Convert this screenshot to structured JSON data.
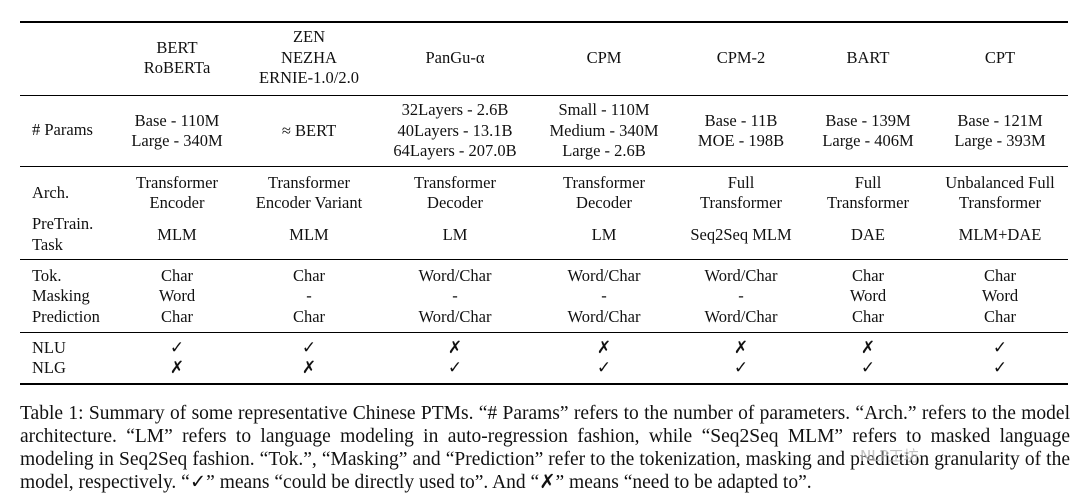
{
  "columns": [
    {
      "lines": [
        "BERT",
        "RoBERTa"
      ]
    },
    {
      "lines": [
        "ZEN",
        "NEZHA",
        "ERNIE-1.0/2.0"
      ]
    },
    {
      "lines": [
        "PanGu-α"
      ]
    },
    {
      "lines": [
        "CPM"
      ]
    },
    {
      "lines": [
        "CPM-2"
      ]
    },
    {
      "lines": [
        "BART"
      ]
    },
    {
      "lines": [
        "CPT"
      ]
    }
  ],
  "row_labels": {
    "params": "# Params",
    "arch": "Arch.",
    "pretrain": [
      "PreTrain.",
      "Task"
    ],
    "tok": "Tok.",
    "masking": "Masking",
    "prediction": "Prediction",
    "nlu": "NLU",
    "nlg": "NLG"
  },
  "params": [
    [
      "Base - 110M",
      "Large - 340M"
    ],
    [
      "≈ BERT"
    ],
    [
      "32Layers - 2.6B",
      "40Layers - 13.1B",
      "64Layers - 207.0B"
    ],
    [
      "Small - 110M",
      "Medium - 340M",
      "Large - 2.6B"
    ],
    [
      "Base - 11B",
      "MOE - 198B"
    ],
    [
      "Base - 139M",
      "Large - 406M"
    ],
    [
      "Base - 121M",
      "Large - 393M"
    ]
  ],
  "arch": [
    [
      "Transformer",
      "Encoder"
    ],
    [
      "Transformer",
      "Encoder Variant"
    ],
    [
      "Transformer",
      "Decoder"
    ],
    [
      "Transformer",
      "Decoder"
    ],
    [
      "Full",
      "Transformer"
    ],
    [
      "Full",
      "Transformer"
    ],
    [
      "Unbalanced Full",
      "Transformer"
    ]
  ],
  "pretrain": [
    "MLM",
    "MLM",
    "LM",
    "LM",
    "Seq2Seq MLM",
    "DAE",
    "MLM+DAE"
  ],
  "tok": [
    "Char",
    "Char",
    "Word/Char",
    "Word/Char",
    "Word/Char",
    "Char",
    "Char"
  ],
  "masking": [
    "Word",
    "-",
    "-",
    "-",
    "-",
    "Word",
    "Word"
  ],
  "prediction": [
    "Char",
    "Char",
    "Word/Char",
    "Word/Char",
    "Word/Char",
    "Char",
    "Char"
  ],
  "nlu": [
    "✓",
    "✓",
    "✗",
    "✗",
    "✗",
    "✗",
    "✓"
  ],
  "nlg": [
    "✗",
    "✗",
    "✓",
    "✓",
    "✓",
    "✓",
    "✓"
  ],
  "caption": "Table 1: Summary of some representative Chinese PTMs. “# Params” refers to the number of parameters. “Arch.” refers to the model architecture. “LM” refers to language modeling in auto-regression fashion, while “Seq2Seq MLM” refers to masked language modeling in Seq2Seq fashion. “Tok.”, “Masking” and “Prediction” refer to the tokenization, masking and prediction granularity of the model, respectively. “✓” means “could be directly used to”. And “✗” means “need to be adapted to”.",
  "watermark": "NLP工坊"
}
